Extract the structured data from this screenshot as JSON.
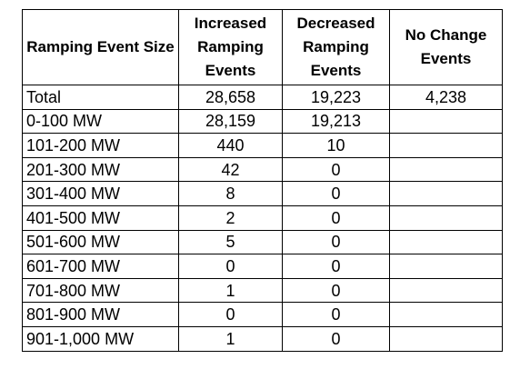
{
  "table": {
    "headers": [
      "Ramping Event Size",
      "Increased Ramping Events",
      "Decreased Ramping Events",
      "No Change Events"
    ],
    "rows": [
      [
        "Total",
        "28,658",
        "19,223",
        "4,238"
      ],
      [
        "0-100 MW",
        "28,159",
        "19,213",
        ""
      ],
      [
        "101-200 MW",
        "440",
        "10",
        ""
      ],
      [
        "201-300 MW",
        "42",
        "0",
        ""
      ],
      [
        "301-400 MW",
        "8",
        "0",
        ""
      ],
      [
        "401-500 MW",
        "2",
        "0",
        ""
      ],
      [
        "501-600 MW",
        "5",
        "0",
        ""
      ],
      [
        "601-700 MW",
        "0",
        "0",
        ""
      ],
      [
        "701-800 MW",
        "1",
        "0",
        ""
      ],
      [
        "801-900 MW",
        "0",
        "0",
        ""
      ],
      [
        "901-1,000 MW",
        "1",
        "0",
        ""
      ]
    ]
  }
}
